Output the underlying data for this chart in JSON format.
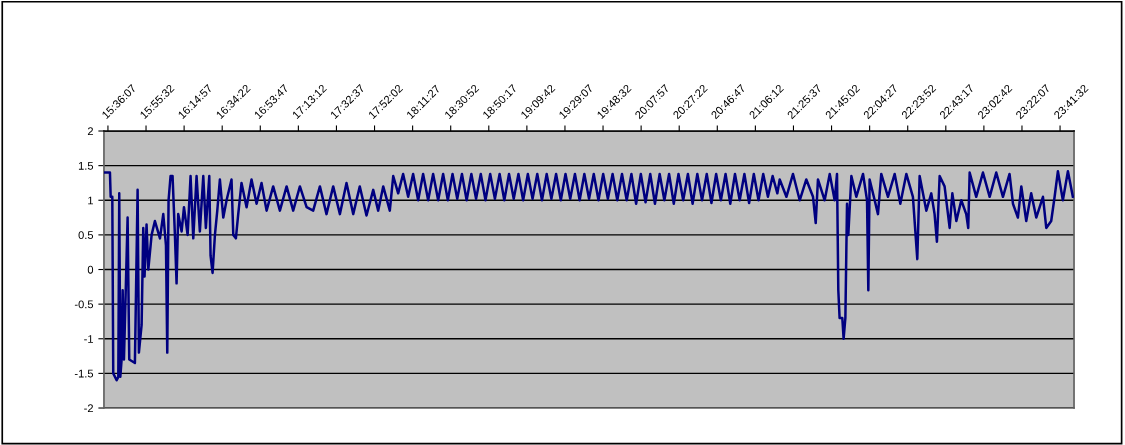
{
  "chart_data": {
    "type": "line",
    "grid": "y",
    "marker": "none",
    "line_style": "solid",
    "xlim": [
      15.568,
      23.811
    ],
    "xticks": [
      {
        "value": 15.60194,
        "label": "15:36:07"
      },
      {
        "value": 15.92556,
        "label": "15:55:32"
      },
      {
        "value": 16.24917,
        "label": "16:14:57"
      },
      {
        "value": 16.57278,
        "label": "16:34:22"
      },
      {
        "value": 16.89639,
        "label": "16:53:47"
      },
      {
        "value": 17.22,
        "label": "17:13:12"
      },
      {
        "value": 17.54361,
        "label": "17:32:37"
      },
      {
        "value": 17.86722,
        "label": "17:52:02"
      },
      {
        "value": 18.19083,
        "label": "18:11:27"
      },
      {
        "value": 18.51444,
        "label": "18:30:52"
      },
      {
        "value": 18.83806,
        "label": "18:50:17"
      },
      {
        "value": 19.16167,
        "label": "19:09:42"
      },
      {
        "value": 19.48528,
        "label": "19:29:07"
      },
      {
        "value": 19.80889,
        "label": "19:48:32"
      },
      {
        "value": 20.1325,
        "label": "20:07:57"
      },
      {
        "value": 20.45611,
        "label": "20:27:22"
      },
      {
        "value": 20.77972,
        "label": "20:46:47"
      },
      {
        "value": 21.10333,
        "label": "21:06:12"
      },
      {
        "value": 21.42694,
        "label": "21:25:37"
      },
      {
        "value": 21.75056,
        "label": "21:45:02"
      },
      {
        "value": 22.07417,
        "label": "22:04:27"
      },
      {
        "value": 22.39778,
        "label": "22:23:52"
      },
      {
        "value": 22.72139,
        "label": "22:43:17"
      },
      {
        "value": 23.045,
        "label": "23:02:42"
      },
      {
        "value": 23.36861,
        "label": "23:22:07"
      },
      {
        "value": 23.69222,
        "label": "23:41:32"
      }
    ],
    "ylim": [
      -2,
      2
    ],
    "yticks": [
      -2,
      -1.5,
      -1,
      -0.5,
      0,
      0.5,
      1,
      1.5,
      2
    ],
    "x": [
      15.571,
      15.619,
      15.625,
      15.639,
      15.647,
      15.676,
      15.69,
      15.698,
      15.707,
      15.718,
      15.727,
      15.738,
      15.769,
      15.783,
      15.831,
      15.854,
      15.865,
      15.888,
      15.902,
      15.913,
      15.93,
      15.945,
      15.973,
      16.001,
      16.044,
      16.072,
      16.095,
      16.106,
      16.117,
      16.134,
      16.151,
      16.171,
      16.185,
      16.199,
      16.228,
      16.248,
      16.279,
      16.304,
      16.327,
      16.355,
      16.383,
      16.412,
      16.434,
      16.463,
      16.474,
      16.491,
      16.511,
      16.531,
      16.553,
      16.582,
      16.61,
      16.652,
      16.667,
      16.689,
      16.709,
      16.737,
      16.78,
      16.822,
      16.865,
      16.907,
      16.95,
      17.006,
      17.063,
      17.12,
      17.176,
      17.233,
      17.29,
      17.346,
      17.403,
      17.459,
      17.516,
      17.573,
      17.629,
      17.686,
      17.742,
      17.799,
      17.856,
      17.898,
      17.941,
      17.997,
      18.026,
      18.068,
      18.11,
      18.153,
      18.195,
      18.238,
      18.28,
      18.323,
      18.365,
      18.408,
      18.45,
      18.49,
      18.53,
      18.57,
      18.61,
      18.65,
      18.69,
      18.73,
      18.77,
      18.81,
      18.85,
      18.89,
      18.93,
      18.97,
      19.01,
      19.05,
      19.09,
      19.13,
      19.17,
      19.21,
      19.25,
      19.29,
      19.33,
      19.37,
      19.41,
      19.45,
      19.49,
      19.53,
      19.57,
      19.61,
      19.65,
      19.69,
      19.73,
      19.77,
      19.81,
      19.85,
      19.89,
      19.93,
      19.97,
      20.01,
      20.05,
      20.09,
      20.13,
      20.17,
      20.21,
      20.25,
      20.29,
      20.33,
      20.37,
      20.41,
      20.45,
      20.49,
      20.53,
      20.57,
      20.61,
      20.65,
      20.69,
      20.73,
      20.77,
      20.81,
      20.85,
      20.89,
      20.93,
      20.97,
      21.01,
      21.05,
      21.09,
      21.13,
      21.17,
      21.21,
      21.25,
      21.29,
      21.31,
      21.367,
      21.423,
      21.48,
      21.536,
      21.593,
      21.616,
      21.635,
      21.692,
      21.735,
      21.777,
      21.797,
      21.808,
      21.819,
      21.842,
      21.853,
      21.868,
      21.882,
      21.893,
      21.919,
      21.961,
      22.018,
      22.052,
      22.063,
      22.074,
      22.117,
      22.145,
      22.173,
      22.23,
      22.287,
      22.335,
      22.386,
      22.442,
      22.479,
      22.499,
      22.556,
      22.598,
      22.626,
      22.646,
      22.669,
      22.711,
      22.754,
      22.777,
      22.811,
      22.853,
      22.895,
      22.912,
      22.924,
      22.98,
      23.037,
      23.094,
      23.15,
      23.207,
      23.263,
      23.292,
      23.334,
      23.363,
      23.405,
      23.447,
      23.49,
      23.547,
      23.575,
      23.617,
      23.646,
      23.674,
      23.716,
      23.759,
      23.801
    ],
    "series": [
      {
        "color": "#000080",
        "values": [
          1.4,
          1.4,
          1.05,
          1.05,
          -1.5,
          -1.6,
          -1.55,
          1.1,
          -1.55,
          -1.3,
          -0.3,
          -1.3,
          0.75,
          -1.3,
          -1.35,
          1.15,
          -1.2,
          -0.8,
          0.6,
          -0.1,
          0.65,
          0.0,
          0.5,
          0.7,
          0.45,
          0.8,
          0.35,
          -1.2,
          1.0,
          1.35,
          1.35,
          0.5,
          -0.2,
          0.8,
          0.55,
          0.9,
          0.5,
          1.35,
          0.45,
          1.35,
          0.55,
          1.35,
          0.6,
          1.35,
          0.2,
          -0.05,
          0.5,
          0.85,
          1.3,
          0.75,
          1.0,
          1.3,
          0.5,
          0.45,
          0.8,
          1.25,
          0.9,
          1.3,
          0.95,
          1.25,
          0.85,
          1.2,
          0.85,
          1.2,
          0.85,
          1.2,
          0.9,
          0.85,
          1.2,
          0.8,
          1.2,
          0.8,
          1.25,
          0.8,
          1.2,
          0.78,
          1.15,
          0.85,
          1.2,
          0.85,
          1.35,
          1.1,
          1.38,
          1.05,
          1.38,
          1.0,
          1.38,
          1.0,
          1.38,
          1.0,
          1.38,
          1.0,
          1.38,
          1.02,
          1.38,
          1.0,
          1.38,
          1.02,
          1.38,
          1.0,
          1.38,
          1.02,
          1.38,
          1.0,
          1.38,
          1.02,
          1.38,
          1.0,
          1.38,
          1.02,
          1.38,
          1.0,
          1.38,
          1.02,
          1.38,
          1.0,
          1.38,
          1.02,
          1.38,
          1.0,
          1.38,
          1.02,
          1.38,
          1.0,
          1.38,
          1.02,
          1.38,
          1.0,
          1.38,
          1.0,
          1.38,
          0.95,
          1.38,
          0.97,
          1.38,
          0.95,
          1.38,
          1.0,
          1.38,
          0.95,
          1.38,
          1.0,
          1.38,
          0.95,
          1.38,
          1.0,
          1.38,
          0.96,
          1.38,
          1.0,
          1.38,
          0.95,
          1.38,
          1.0,
          1.38,
          0.96,
          1.38,
          1.0,
          1.38,
          1.05,
          1.35,
          1.1,
          1.3,
          1.05,
          1.38,
          1.0,
          1.3,
          1.05,
          0.67,
          1.3,
          1.0,
          1.38,
          1.0,
          1.38,
          -0.3,
          -0.7,
          -0.7,
          -1.0,
          -0.7,
          0.95,
          0.5,
          1.35,
          1.05,
          1.38,
          1.0,
          -0.3,
          1.3,
          1.0,
          0.8,
          1.38,
          1.05,
          1.38,
          0.95,
          1.38,
          1.05,
          0.15,
          1.35,
          0.85,
          1.1,
          0.8,
          0.4,
          1.35,
          1.2,
          0.6,
          1.1,
          0.7,
          1.0,
          0.8,
          0.6,
          1.4,
          1.05,
          1.4,
          1.05,
          1.4,
          1.05,
          1.38,
          0.95,
          0.75,
          1.2,
          0.7,
          1.1,
          0.75,
          1.05,
          0.6,
          0.7,
          1.05,
          1.42,
          1.0,
          1.42,
          1.05
        ]
      }
    ]
  }
}
